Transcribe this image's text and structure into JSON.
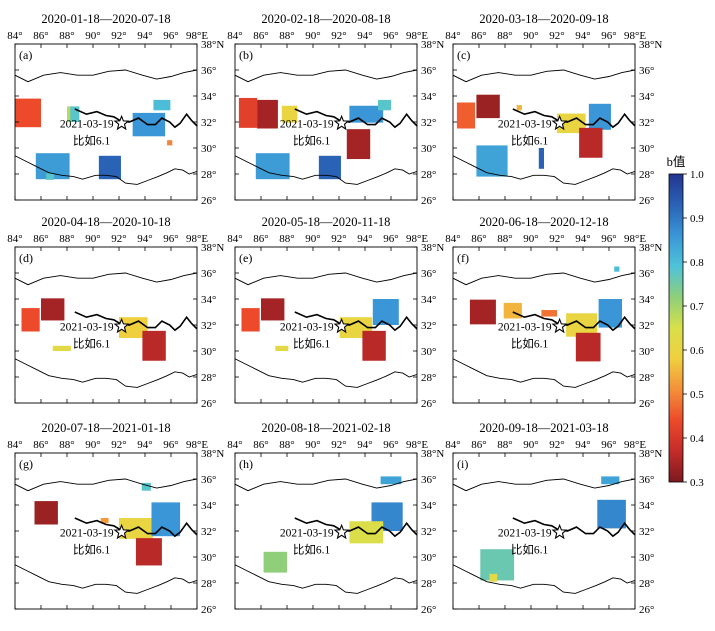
{
  "figure": {
    "x_ticks": [
      "84°",
      "86°",
      "88°",
      "90°",
      "92°",
      "94°",
      "96°",
      "98°E"
    ],
    "y_ticks": [
      "38°N",
      "36°",
      "34°",
      "32°",
      "30°",
      "28°",
      "26°"
    ],
    "colorbar": {
      "label": "b值",
      "ticks": [
        "1.0",
        "0.9",
        "0.8",
        "0.7",
        "0.6",
        "0.5",
        "0.4",
        "0.3"
      ],
      "min": 0.3,
      "max": 1.0,
      "colormap": [
        "#7a1a1e",
        "#c42c2a",
        "#ec4a2b",
        "#f3903a",
        "#f0cf3f",
        "#d8e04a",
        "#8fcf7a",
        "#4fc3d8",
        "#3a96d6",
        "#2a62b6",
        "#24358f"
      ]
    },
    "event": {
      "date": "2021-03-19",
      "name": "比如6.1",
      "lon": 92.2,
      "lat": 31.9
    }
  },
  "chart_data": {
    "type": "heatmap",
    "xlabel": "",
    "ylabel": "",
    "xlim": [
      84,
      98
    ],
    "ylim": [
      26,
      38
    ],
    "panels": [
      {
        "label": "(a)",
        "title": "2020-01-18—2020-07-18",
        "cells": [
          {
            "lon": 85.0,
            "lat": 32.7,
            "w": 2.0,
            "h": 2.2,
            "b": 0.44
          },
          {
            "lon": 88.2,
            "lat": 32.6,
            "w": 0.4,
            "h": 1.2,
            "b": 0.68
          },
          {
            "lon": 88.6,
            "lat": 32.6,
            "w": 0.7,
            "h": 1.2,
            "b": 0.78
          },
          {
            "lon": 94.3,
            "lat": 31.8,
            "w": 2.5,
            "h": 1.8,
            "b": 0.86
          },
          {
            "lon": 95.3,
            "lat": 33.3,
            "w": 1.3,
            "h": 0.8,
            "b": 0.8
          },
          {
            "lon": 95.9,
            "lat": 30.4,
            "w": 0.4,
            "h": 0.4,
            "b": 0.5
          },
          {
            "lon": 86.9,
            "lat": 28.6,
            "w": 2.6,
            "h": 2.0,
            "b": 0.85
          },
          {
            "lon": 86.7,
            "lat": 27.8,
            "w": 0.6,
            "h": 0.5,
            "b": 0.78
          },
          {
            "lon": 91.3,
            "lat": 28.5,
            "w": 1.7,
            "h": 1.8,
            "b": 0.93
          }
        ]
      },
      {
        "label": "(b)",
        "title": "2020-02-18—2020-08-18",
        "cells": [
          {
            "lon": 85.0,
            "lat": 32.7,
            "w": 1.4,
            "h": 2.3,
            "b": 0.42
          },
          {
            "lon": 86.5,
            "lat": 32.6,
            "w": 1.6,
            "h": 2.2,
            "b": 0.34
          },
          {
            "lon": 88.2,
            "lat": 32.6,
            "w": 1.2,
            "h": 1.3,
            "b": 0.6
          },
          {
            "lon": 94.1,
            "lat": 32.6,
            "w": 2.6,
            "h": 1.3,
            "b": 0.86
          },
          {
            "lon": 95.5,
            "lat": 33.3,
            "w": 1.0,
            "h": 0.8,
            "b": 0.78
          },
          {
            "lon": 93.5,
            "lat": 30.3,
            "w": 1.8,
            "h": 2.3,
            "b": 0.34
          },
          {
            "lon": 86.9,
            "lat": 28.6,
            "w": 2.6,
            "h": 2.0,
            "b": 0.85
          },
          {
            "lon": 91.3,
            "lat": 28.5,
            "w": 1.7,
            "h": 1.8,
            "b": 0.93
          }
        ]
      },
      {
        "label": "(c)",
        "title": "2020-03-18—2020-09-18",
        "cells": [
          {
            "lon": 85.0,
            "lat": 32.5,
            "w": 1.4,
            "h": 2.0,
            "b": 0.46
          },
          {
            "lon": 86.7,
            "lat": 33.2,
            "w": 1.8,
            "h": 1.8,
            "b": 0.33
          },
          {
            "lon": 89.1,
            "lat": 33.1,
            "w": 0.4,
            "h": 0.4,
            "b": 0.55
          },
          {
            "lon": 93.1,
            "lat": 31.9,
            "w": 2.2,
            "h": 1.5,
            "b": 0.6
          },
          {
            "lon": 95.3,
            "lat": 32.4,
            "w": 1.7,
            "h": 2.0,
            "b": 0.86
          },
          {
            "lon": 94.6,
            "lat": 30.4,
            "w": 1.8,
            "h": 2.3,
            "b": 0.36
          },
          {
            "lon": 87.0,
            "lat": 29.0,
            "w": 2.4,
            "h": 2.4,
            "b": 0.84
          },
          {
            "lon": 90.8,
            "lat": 29.2,
            "w": 0.4,
            "h": 1.6,
            "b": 0.93
          }
        ]
      },
      {
        "label": "(d)",
        "title": "2020-04-18—2020-10-18",
        "cells": [
          {
            "lon": 85.2,
            "lat": 32.4,
            "w": 1.4,
            "h": 1.8,
            "b": 0.44
          },
          {
            "lon": 86.9,
            "lat": 33.2,
            "w": 1.8,
            "h": 1.7,
            "b": 0.34
          },
          {
            "lon": 93.1,
            "lat": 31.8,
            "w": 2.2,
            "h": 1.6,
            "b": 0.58
          },
          {
            "lon": 94.7,
            "lat": 30.4,
            "w": 1.8,
            "h": 2.3,
            "b": 0.36
          },
          {
            "lon": 87.6,
            "lat": 30.2,
            "w": 1.4,
            "h": 0.4,
            "b": 0.62
          }
        ]
      },
      {
        "label": "(e)",
        "title": "2020-05-18—2020-11-18",
        "cells": [
          {
            "lon": 85.2,
            "lat": 32.4,
            "w": 1.4,
            "h": 1.8,
            "b": 0.44
          },
          {
            "lon": 86.9,
            "lat": 33.2,
            "w": 1.8,
            "h": 1.7,
            "b": 0.34
          },
          {
            "lon": 95.6,
            "lat": 33.0,
            "w": 2.0,
            "h": 2.0,
            "b": 0.86
          },
          {
            "lon": 93.3,
            "lat": 31.8,
            "w": 2.5,
            "h": 1.6,
            "b": 0.6
          },
          {
            "lon": 94.7,
            "lat": 30.4,
            "w": 1.8,
            "h": 2.3,
            "b": 0.36
          },
          {
            "lon": 87.6,
            "lat": 30.2,
            "w": 1.0,
            "h": 0.4,
            "b": 0.62
          }
        ]
      },
      {
        "label": "(f)",
        "title": "2020-06-18—2020-12-18",
        "cells": [
          {
            "lon": 86.3,
            "lat": 33.0,
            "w": 2.0,
            "h": 1.9,
            "b": 0.34
          },
          {
            "lon": 88.6,
            "lat": 33.1,
            "w": 1.4,
            "h": 1.2,
            "b": 0.55
          },
          {
            "lon": 91.4,
            "lat": 32.9,
            "w": 1.2,
            "h": 0.5,
            "b": 0.48
          },
          {
            "lon": 93.9,
            "lat": 32.0,
            "w": 2.4,
            "h": 1.8,
            "b": 0.6
          },
          {
            "lon": 96.1,
            "lat": 32.9,
            "w": 1.8,
            "h": 2.2,
            "b": 0.86
          },
          {
            "lon": 94.4,
            "lat": 30.3,
            "w": 1.9,
            "h": 2.2,
            "b": 0.36
          },
          {
            "lon": 96.6,
            "lat": 36.3,
            "w": 0.4,
            "h": 0.4,
            "b": 0.8
          }
        ]
      },
      {
        "label": "(g)",
        "title": "2020-07-18—2021-01-18",
        "cells": [
          {
            "lon": 86.4,
            "lat": 33.4,
            "w": 1.8,
            "h": 1.8,
            "b": 0.33
          },
          {
            "lon": 93.3,
            "lat": 32.2,
            "w": 2.6,
            "h": 1.6,
            "b": 0.6
          },
          {
            "lon": 95.6,
            "lat": 32.9,
            "w": 2.2,
            "h": 2.6,
            "b": 0.86
          },
          {
            "lon": 94.3,
            "lat": 30.4,
            "w": 2.0,
            "h": 2.1,
            "b": 0.36
          },
          {
            "lon": 94.1,
            "lat": 35.4,
            "w": 0.7,
            "h": 0.6,
            "b": 0.78
          },
          {
            "lon": 90.9,
            "lat": 32.8,
            "w": 0.6,
            "h": 0.4,
            "b": 0.52
          }
        ]
      },
      {
        "label": "(h)",
        "title": "2020-08-18—2021-02-18",
        "cells": [
          {
            "lon": 95.7,
            "lat": 33.1,
            "w": 2.4,
            "h": 2.2,
            "b": 0.88
          },
          {
            "lon": 94.1,
            "lat": 31.9,
            "w": 2.6,
            "h": 1.7,
            "b": 0.64
          },
          {
            "lon": 96.0,
            "lat": 35.9,
            "w": 1.6,
            "h": 0.6,
            "b": 0.84
          },
          {
            "lon": 87.1,
            "lat": 29.6,
            "w": 1.8,
            "h": 1.6,
            "b": 0.72
          }
        ]
      },
      {
        "label": "(i)",
        "title": "2020-09-18—2021-03-18",
        "cells": [
          {
            "lon": 96.2,
            "lat": 33.3,
            "w": 2.2,
            "h": 2.2,
            "b": 0.88
          },
          {
            "lon": 96.1,
            "lat": 35.9,
            "w": 1.4,
            "h": 0.6,
            "b": 0.84
          },
          {
            "lon": 87.4,
            "lat": 29.4,
            "w": 2.6,
            "h": 2.4,
            "b": 0.76
          },
          {
            "lon": 87.1,
            "lat": 28.4,
            "w": 0.6,
            "h": 0.6,
            "b": 0.62
          }
        ]
      }
    ]
  }
}
